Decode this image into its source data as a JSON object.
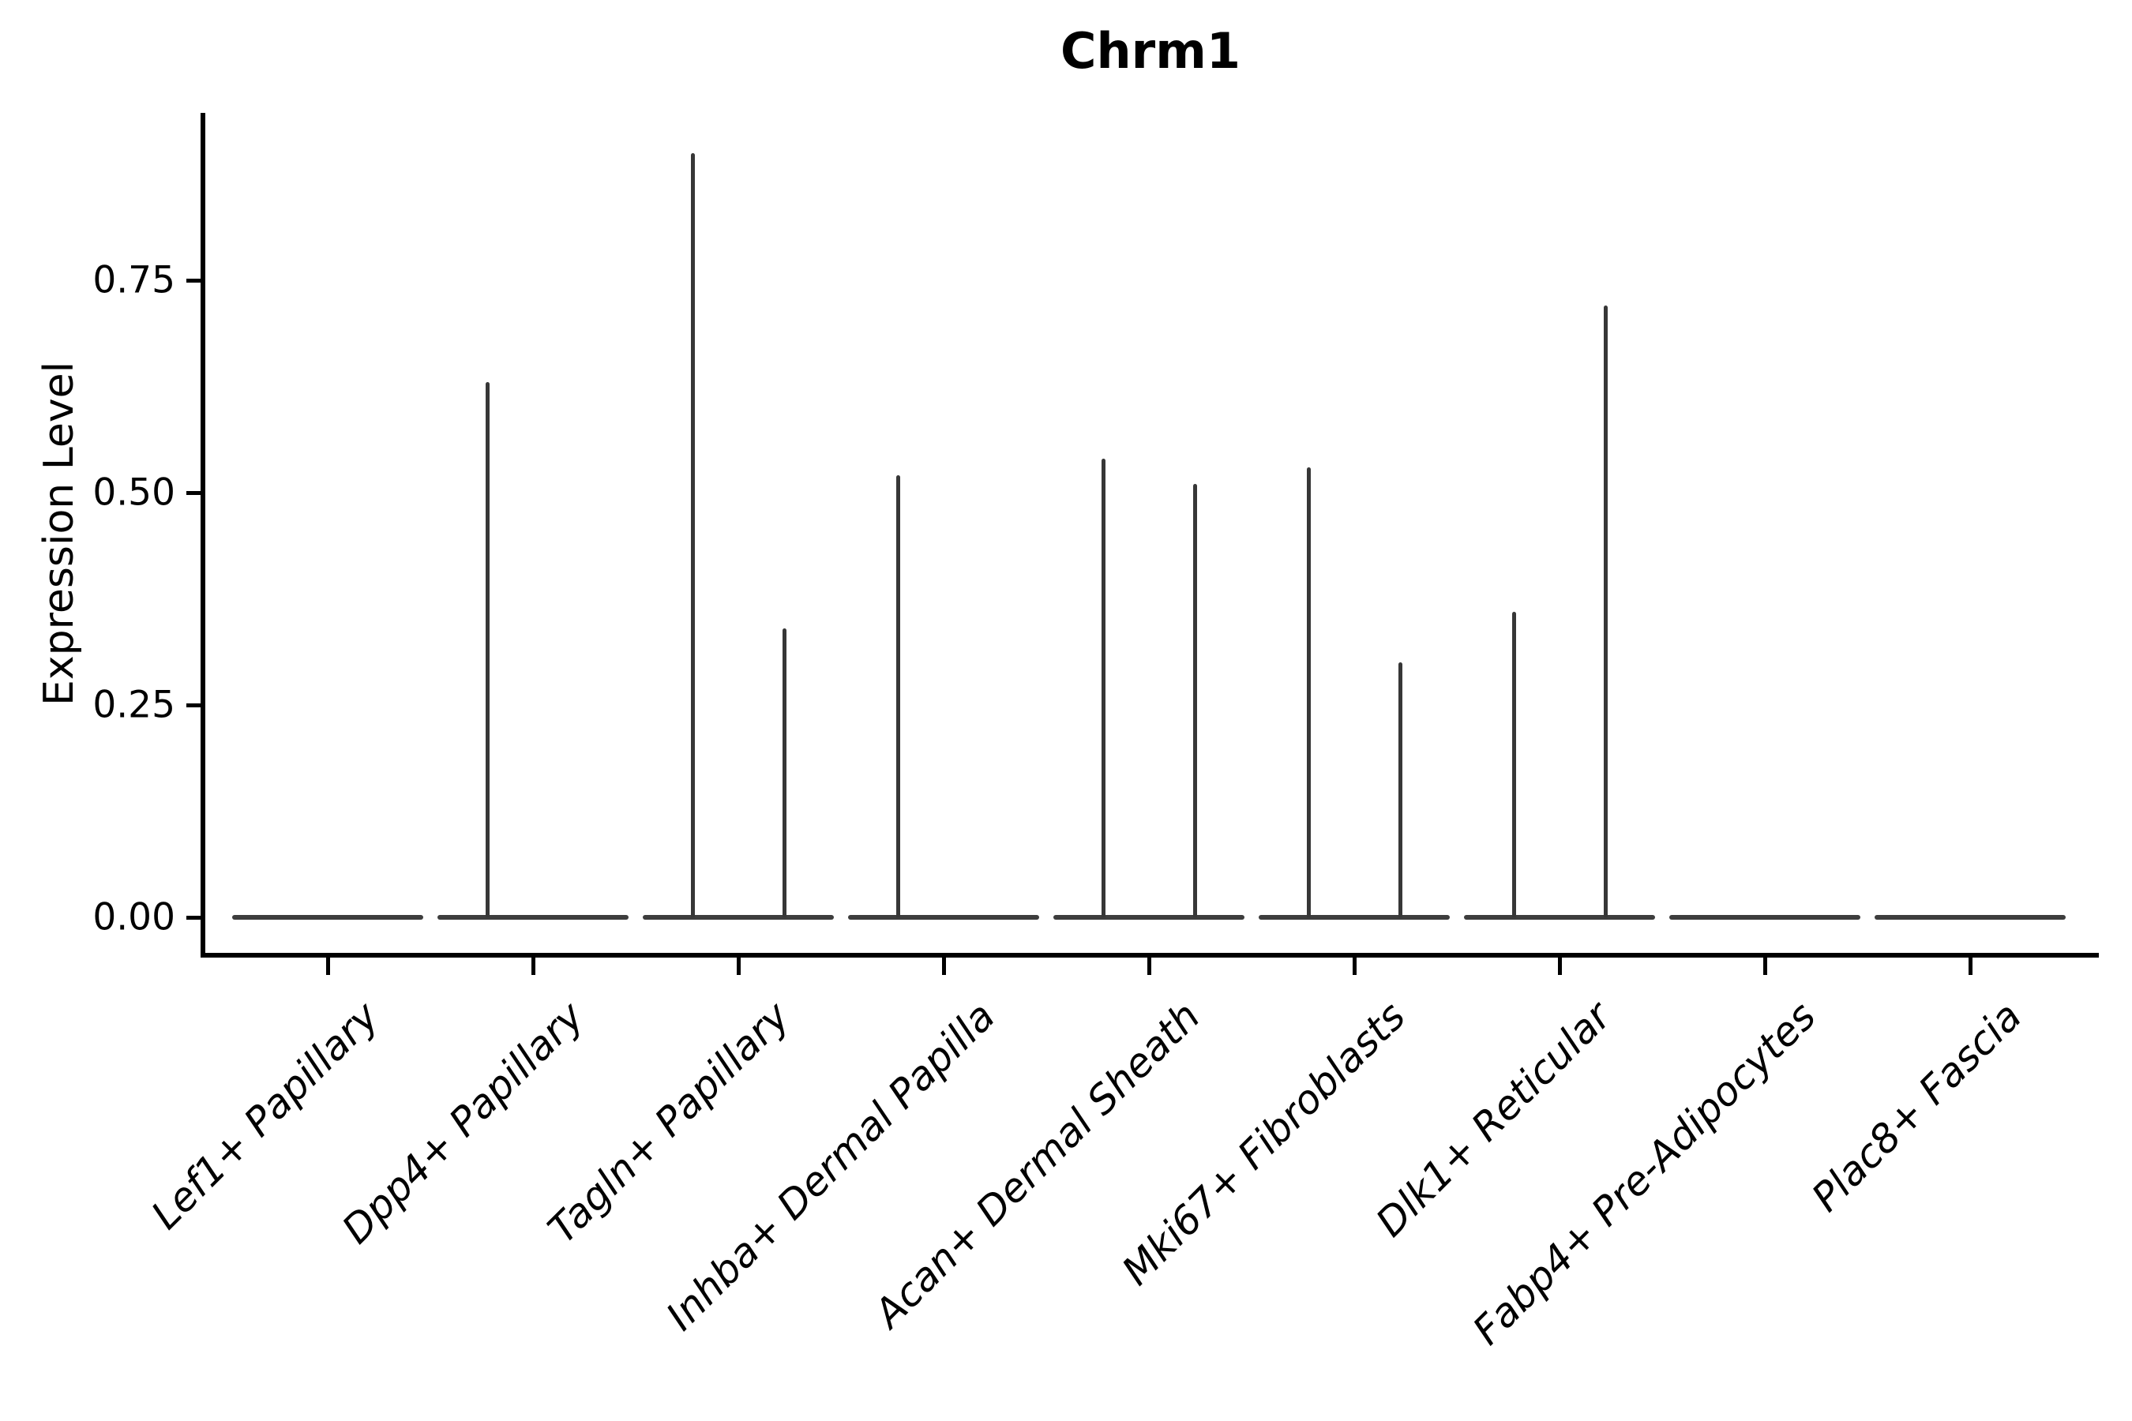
{
  "chart_data": {
    "type": "violin",
    "title": "Chrm1",
    "ylabel": "Expression Level",
    "xlabel": "",
    "ylim": [
      0,
      0.95
    ],
    "yticks": [
      0,
      0.25,
      0.5,
      0.75
    ],
    "ytick_labels": [
      "0.00",
      "0.25",
      "0.50",
      "0.75"
    ],
    "grid": "off",
    "legend": "none",
    "description": "Violin plot of Chrm1 expression; each category shows a flat violin collapsed at 0 with thin vertical spikes reaching the maximum expression of rare positive cells. Two spike slots per category (left/right sub-violin).",
    "categories": [
      {
        "label": "Lef1+ Papillary",
        "spikes": []
      },
      {
        "label": "Dpp4+ Papillary",
        "spikes": [
          {
            "side": "left",
            "value": 0.63
          }
        ]
      },
      {
        "label": "Tagln+ Papillary",
        "spikes": [
          {
            "side": "left",
            "value": 0.9
          },
          {
            "side": "right",
            "value": 0.34
          }
        ]
      },
      {
        "label": "Inhba+ Dermal Papilla",
        "spikes": [
          {
            "side": "left",
            "value": 0.52
          }
        ]
      },
      {
        "label": "Acan+ Dermal Sheath",
        "spikes": [
          {
            "side": "left",
            "value": 0.54
          },
          {
            "side": "right",
            "value": 0.51
          }
        ]
      },
      {
        "label": "Mki67+ Fibroblasts",
        "spikes": [
          {
            "side": "left",
            "value": 0.53
          },
          {
            "side": "right",
            "value": 0.3
          }
        ]
      },
      {
        "label": "Dlk1+ Reticular",
        "spikes": [
          {
            "side": "left",
            "value": 0.36
          },
          {
            "side": "right",
            "value": 0.72
          }
        ]
      },
      {
        "label": "Fabp4+ Pre-Adipocytes",
        "spikes": []
      },
      {
        "label": "Plac8+ Fascia",
        "spikes": []
      }
    ],
    "colors": {
      "violin_edge": "#3d3d3d",
      "spike": "#373737",
      "spine": "#000000",
      "text": "#000000",
      "background": "#ffffff"
    }
  }
}
